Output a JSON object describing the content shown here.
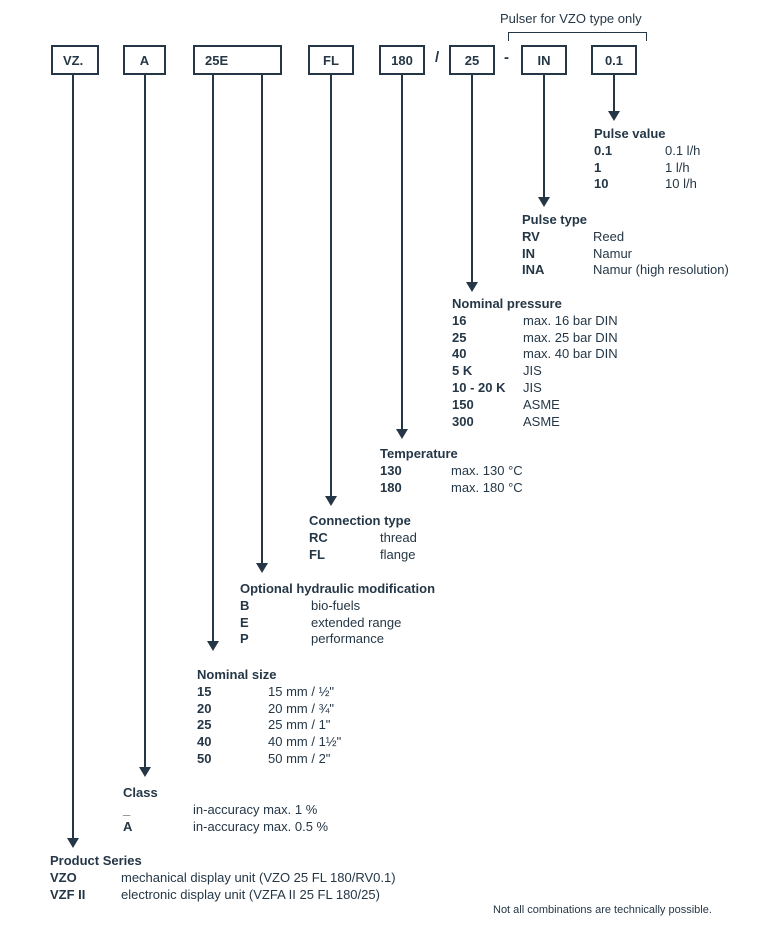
{
  "code_segments": {
    "series": "VZ.",
    "class": "A",
    "size_mod": "25E",
    "connection": "FL",
    "temperature": "180",
    "sep_slash": "/",
    "pressure": "25",
    "sep_dash": "-",
    "pulse_type": "IN",
    "pulse_value": "0.1"
  },
  "pulser_note": "Pulser for VZO type only",
  "groups": {
    "pulse_value": {
      "title": "Pulse value",
      "rows": [
        {
          "code": "0.1",
          "desc": "0.1 l/h"
        },
        {
          "code": "1",
          "desc": "1 l/h"
        },
        {
          "code": "10",
          "desc": "10 l/h"
        }
      ]
    },
    "pulse_type": {
      "title": "Pulse type",
      "rows": [
        {
          "code": "RV",
          "desc": "Reed"
        },
        {
          "code": "IN",
          "desc": "Namur"
        },
        {
          "code": "INA",
          "desc": "Namur (high resolution)"
        }
      ]
    },
    "nominal_pressure": {
      "title": "Nominal pressure",
      "rows": [
        {
          "code": "16",
          "desc": "max. 16 bar DIN"
        },
        {
          "code": "25",
          "desc": "max. 25 bar DIN"
        },
        {
          "code": "40",
          "desc": "max. 40 bar DIN"
        },
        {
          "code": "5 K",
          "desc": "JIS"
        },
        {
          "code": "10 - 20 K",
          "desc": "JIS"
        },
        {
          "code": "150",
          "desc": "ASME"
        },
        {
          "code": "300",
          "desc": "ASME"
        }
      ]
    },
    "temperature": {
      "title": "Temperature",
      "rows": [
        {
          "code": "130",
          "desc": "max. 130 °C"
        },
        {
          "code": "180",
          "desc": "max. 180 °C"
        }
      ]
    },
    "connection_type": {
      "title": "Connection type",
      "rows": [
        {
          "code": "RC",
          "desc": "thread"
        },
        {
          "code": "FL",
          "desc": "flange"
        }
      ]
    },
    "hydraulic_mod": {
      "title": "Optional hydraulic modification",
      "rows": [
        {
          "code": "B",
          "desc": "bio-fuels"
        },
        {
          "code": "E",
          "desc": "extended range"
        },
        {
          "code": "P",
          "desc": "performance"
        }
      ]
    },
    "nominal_size": {
      "title": "Nominal size",
      "rows": [
        {
          "code": "15",
          "desc": "15 mm / ½\""
        },
        {
          "code": "20",
          "desc": "20 mm / ¾\""
        },
        {
          "code": "25",
          "desc": "25 mm / 1\""
        },
        {
          "code": "40",
          "desc": "40 mm / 1½\""
        },
        {
          "code": "50",
          "desc": "50 mm / 2\""
        }
      ]
    },
    "class": {
      "title": "Class",
      "rows": [
        {
          "code": "_",
          "desc": "in-accuracy max. 1 %"
        },
        {
          "code": "A",
          "desc": "in-accuracy max. 0.5 %"
        }
      ]
    },
    "product_series": {
      "title": "Product Series",
      "rows": [
        {
          "code": "VZO",
          "desc": "mechanical display unit (VZO 25 FL 180/RV0.1)"
        },
        {
          "code": "VZF II",
          "desc": "electronic display unit (VZFA II 25 FL 180/25)"
        }
      ]
    }
  },
  "footnote": "Not all combinations are technically possible."
}
